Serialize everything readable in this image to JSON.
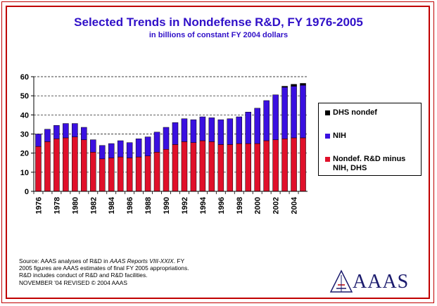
{
  "title": "Selected Trends in Nondefense R&D, FY 1976-2005",
  "subtitle": "in billions of constant FY 2004 dollars",
  "colors": {
    "frame": "#c00000",
    "title": "#3010c8",
    "nih": "#3a10e0",
    "nondef": "#e0102a",
    "dhs": "#000000",
    "logo": "#1c1c6e"
  },
  "legend": [
    {
      "label": "DHS nondef",
      "color": "#000000"
    },
    {
      "label": "NIH",
      "color": "#3a10e0"
    },
    {
      "label": "Nondef. R&D minus NIH, DHS",
      "color": "#e0102a"
    }
  ],
  "chart_data": {
    "type": "bar",
    "stacked": true,
    "title": "Selected Trends in Nondefense R&D, FY 1976-2005",
    "subtitle": "in billions of constant FY 2004 dollars",
    "xlabel": "",
    "ylabel": "",
    "ylim": [
      0,
      60
    ],
    "yticks": [
      0,
      10,
      20,
      30,
      40,
      50,
      60
    ],
    "grid": "dashed horizontal",
    "legend_position": "right",
    "categories": [
      "1976",
      "1977",
      "1978",
      "1979",
      "1980",
      "1981",
      "1982",
      "1983",
      "1984",
      "1985",
      "1986",
      "1987",
      "1988",
      "1989",
      "1990",
      "1991",
      "1992",
      "1993",
      "1994",
      "1995",
      "1996",
      "1997",
      "1998",
      "1999",
      "2000",
      "2001",
      "2002",
      "2003",
      "2004",
      "2005"
    ],
    "xtick_labels": [
      "1976",
      "1978",
      "1980",
      "1982",
      "1984",
      "1986",
      "1988",
      "1990",
      "1992",
      "1994",
      "1996",
      "1998",
      "2000",
      "2002",
      "2004"
    ],
    "series": [
      {
        "name": "Nondef. R&D minus NIH, DHS",
        "color": "#e0102a",
        "values": [
          23.5,
          26,
          27.5,
          28,
          28.5,
          27,
          20.5,
          17,
          17.5,
          18,
          17.5,
          18,
          18.5,
          20.5,
          22,
          24.5,
          26,
          25.5,
          26.5,
          26,
          24.5,
          24.5,
          25,
          25,
          25,
          26.5,
          27,
          27.5,
          28,
          28
        ]
      },
      {
        "name": "NIH",
        "color": "#3a10e0",
        "values": [
          6.5,
          6.5,
          7,
          7.5,
          7,
          6.5,
          6.5,
          7,
          7.5,
          8.5,
          8,
          9.5,
          10,
          10.5,
          11.5,
          11.5,
          12,
          12,
          12.5,
          12.5,
          13,
          13.5,
          14,
          16.5,
          18.5,
          21,
          23.5,
          27,
          27,
          27.5
        ]
      },
      {
        "name": "DHS nondef",
        "color": "#000000",
        "values": [
          0,
          0,
          0,
          0,
          0,
          0,
          0,
          0,
          0,
          0,
          0,
          0,
          0,
          0,
          0,
          0,
          0,
          0,
          0,
          0,
          0,
          0,
          0,
          0,
          0,
          0,
          0,
          0.5,
          1,
          1
        ]
      }
    ]
  },
  "note": {
    "line1a": "Source: AAAS analyses of R&D in ",
    "line1b": "AAAS Reports VIII-XXIX",
    "line1c": ". FY 2005 figures are AAAS estimates of final FY 2005 appropriations. R&D includes conduct of R&D and R&D facilities.",
    "line2": "NOVEMBER '04 REVISED © 2004 AAAS"
  },
  "logo": {
    "text": "AAAS",
    "icon": "aaas-triangle-logo"
  }
}
